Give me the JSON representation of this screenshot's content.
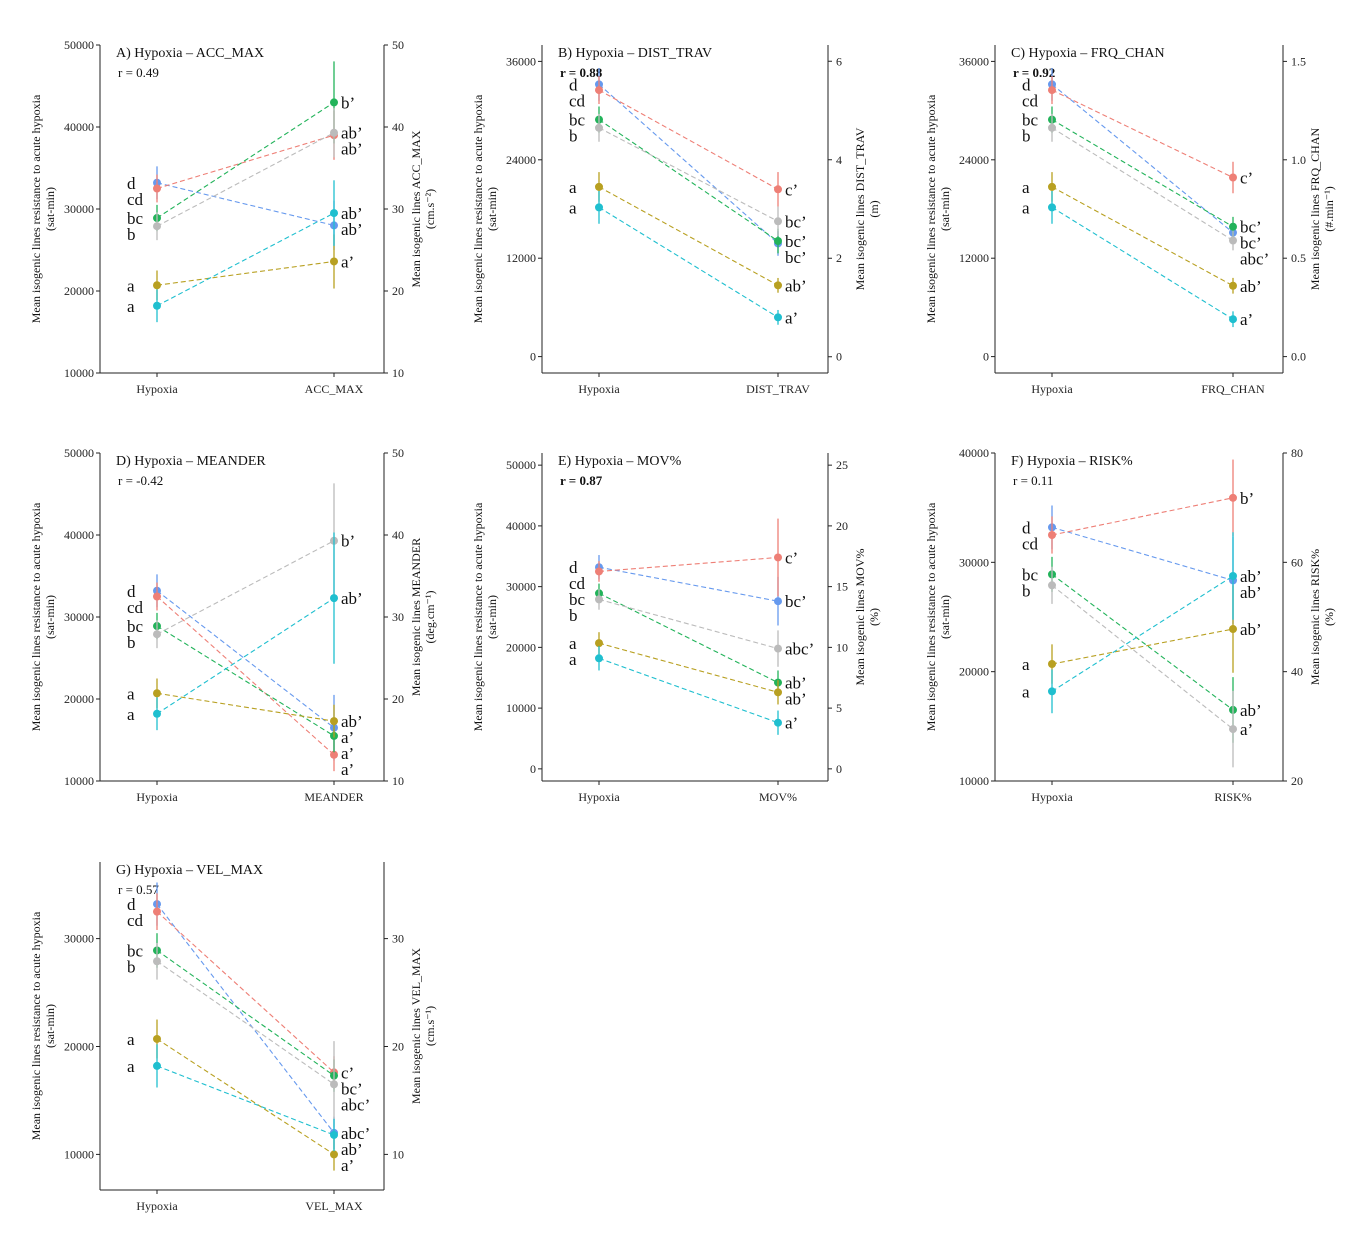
{
  "left_axis_title": [
    "Mean isogenic lines resistance to acute hypoxia",
    "(sat-min)"
  ],
  "category_left": "Hypoxia",
  "chart_data": [
    {
      "type": "line",
      "title": "A) Hypoxia – ACC_MAX",
      "r_text": "r = 0.49",
      "r_bold": false,
      "categories": [
        "Hypoxia",
        "ACC_MAX"
      ],
      "left_ylim": [
        10000,
        50000
      ],
      "left_ticks": [
        10000,
        20000,
        30000,
        40000,
        50000
      ],
      "right_ylim": [
        10,
        50
      ],
      "right_ticks": [
        10,
        20,
        30,
        40,
        50
      ],
      "right_axis_title": [
        "Mean isogenic lines ACC_MAX",
        "(cm.s⁻²)"
      ],
      "left_letters": [
        "d",
        "cd",
        "bc",
        "b",
        "a",
        "a"
      ],
      "right_letters": [
        "b’",
        "ab’",
        "ab’",
        "ab’",
        "ab’",
        "a’"
      ],
      "series": [
        {
          "color": "#6699ee",
          "left": 33200,
          "right": 28,
          "left_err": 2000,
          "right_err": 3
        },
        {
          "color": "#ee7f76",
          "left": 32500,
          "right": 39,
          "left_err": 1700,
          "right_err": 3
        },
        {
          "color": "#22b35a",
          "left": 28900,
          "right": 43,
          "left_err": 1600,
          "right_err": 5
        },
        {
          "color": "#bbbbbb",
          "left": 27900,
          "right": 39.3,
          "left_err": 1700,
          "right_err": 3
        },
        {
          "color": "#b8a021",
          "left": 20700,
          "right": 23.6,
          "left_err": 1800,
          "right_err": 3.3
        },
        {
          "color": "#1fbfcf",
          "left": 18200,
          "right": 29.5,
          "left_err": 2000,
          "right_err": 4
        }
      ]
    },
    {
      "type": "line",
      "title": "B) Hypoxia – DIST_TRAV",
      "r_text": "r = 0.88",
      "r_bold": true,
      "categories": [
        "Hypoxia",
        "DIST_TRAV"
      ],
      "left_ylim": [
        -2000,
        38000
      ],
      "left_ticks": [
        0,
        12000,
        24000,
        36000
      ],
      "right_ylim": [
        -0.33,
        6.33
      ],
      "right_ticks": [
        0,
        2,
        4,
        6
      ],
      "right_axis_title": [
        "Mean isogenic lines DIST_TRAV",
        "(m)"
      ],
      "left_letters": [
        "d",
        "cd",
        "bc",
        "b",
        "a",
        "a"
      ],
      "right_letters": [
        "c’",
        "bc’",
        "bc’",
        "bc’",
        "ab’",
        "a’"
      ],
      "series": [
        {
          "color": "#6699ee",
          "left": 33200,
          "right": 2.3,
          "left_err": 2000,
          "right_err": 0.25
        },
        {
          "color": "#ee7f76",
          "left": 32500,
          "right": 3.4,
          "left_err": 1700,
          "right_err": 0.35
        },
        {
          "color": "#22b35a",
          "left": 28900,
          "right": 2.35,
          "left_err": 1600,
          "right_err": 0.25
        },
        {
          "color": "#bbbbbb",
          "left": 27900,
          "right": 2.75,
          "left_err": 1700,
          "right_err": 0.3
        },
        {
          "color": "#b8a021",
          "left": 20700,
          "right": 1.45,
          "left_err": 1800,
          "right_err": 0.15
        },
        {
          "color": "#1fbfcf",
          "left": 18200,
          "right": 0.8,
          "left_err": 2000,
          "right_err": 0.15
        }
      ]
    },
    {
      "type": "line",
      "title": "C) Hypoxia – FRQ_CHAN",
      "r_text": "r = 0.92",
      "r_bold": true,
      "categories": [
        "Hypoxia",
        "FRQ_CHAN"
      ],
      "left_ylim": [
        -2000,
        38000
      ],
      "left_ticks": [
        0,
        12000,
        24000,
        36000
      ],
      "right_ylim": [
        -0.0833,
        1.5833
      ],
      "right_ticks": [
        0.0,
        0.5,
        1.0,
        1.5
      ],
      "right_axis_title": [
        "Mean isogenic lines FRQ_CHAN",
        "(#.min⁻¹)"
      ],
      "left_letters": [
        "d",
        "cd",
        "bc",
        "b",
        "a",
        "a"
      ],
      "right_letters": [
        "c’",
        "bc’",
        "bc’",
        "abc’",
        "ab’",
        "a’"
      ],
      "series": [
        {
          "color": "#6699ee",
          "left": 33200,
          "right": 0.63,
          "left_err": 2000,
          "right_err": 0.05
        },
        {
          "color": "#ee7f76",
          "left": 32500,
          "right": 0.91,
          "left_err": 1700,
          "right_err": 0.08
        },
        {
          "color": "#22b35a",
          "left": 28900,
          "right": 0.66,
          "left_err": 1600,
          "right_err": 0.05
        },
        {
          "color": "#bbbbbb",
          "left": 27900,
          "right": 0.59,
          "left_err": 1700,
          "right_err": 0.05
        },
        {
          "color": "#b8a021",
          "left": 20700,
          "right": 0.36,
          "left_err": 1800,
          "right_err": 0.04
        },
        {
          "color": "#1fbfcf",
          "left": 18200,
          "right": 0.19,
          "left_err": 2000,
          "right_err": 0.04
        }
      ]
    },
    {
      "type": "line",
      "title": "D) Hypoxia – MEANDER",
      "r_text": "r = -0.42",
      "r_bold": false,
      "categories": [
        "Hypoxia",
        "MEANDER"
      ],
      "left_ylim": [
        10000,
        50000
      ],
      "left_ticks": [
        10000,
        20000,
        30000,
        40000,
        50000
      ],
      "right_ylim": [
        10,
        50
      ],
      "right_ticks": [
        10,
        20,
        30,
        40,
        50
      ],
      "right_axis_title": [
        "Mean isogenic lines MEANDER",
        "(deg.cm⁻¹)"
      ],
      "left_letters": [
        "d",
        "cd",
        "bc",
        "b",
        "a",
        "a"
      ],
      "right_letters": [
        "b’",
        "ab’",
        "ab’",
        "a’",
        "a’",
        "a’"
      ],
      "series": [
        {
          "color": "#6699ee",
          "left": 33200,
          "right": 16.5,
          "left_err": 2000,
          "right_err": 4
        },
        {
          "color": "#ee7f76",
          "left": 32500,
          "right": 13.2,
          "left_err": 1700,
          "right_err": 2
        },
        {
          "color": "#22b35a",
          "left": 28900,
          "right": 15.5,
          "left_err": 1600,
          "right_err": 2
        },
        {
          "color": "#bbbbbb",
          "left": 27900,
          "right": 39.3,
          "left_err": 1700,
          "right_err": 7
        },
        {
          "color": "#b8a021",
          "left": 20700,
          "right": 17.3,
          "left_err": 1800,
          "right_err": 2
        },
        {
          "color": "#1fbfcf",
          "left": 18200,
          "right": 32.3,
          "left_err": 2000,
          "right_err": 8
        }
      ]
    },
    {
      "type": "line",
      "title": "E) Hypoxia – MOV%",
      "r_text": "r = 0.87",
      "r_bold": true,
      "categories": [
        "Hypoxia",
        "MOV%"
      ],
      "left_ylim": [
        -2000,
        52000
      ],
      "left_ticks": [
        0,
        10000,
        20000,
        30000,
        40000,
        50000
      ],
      "right_ylim": [
        -1,
        26
      ],
      "right_ticks": [
        0,
        5,
        10,
        15,
        20,
        25
      ],
      "right_axis_title": [
        "Mean isogenic lines MOV%",
        "(%)"
      ],
      "left_letters": [
        "d",
        "cd",
        "bc",
        "b",
        "a",
        "a"
      ],
      "right_letters": [
        "c’",
        "bc’",
        "abc’",
        "ab’",
        "ab’",
        "a’"
      ],
      "series": [
        {
          "color": "#6699ee",
          "left": 33200,
          "right": 13.8,
          "left_err": 2000,
          "right_err": 2
        },
        {
          "color": "#ee7f76",
          "left": 32500,
          "right": 17.4,
          "left_err": 1700,
          "right_err": 3.2
        },
        {
          "color": "#22b35a",
          "left": 28900,
          "right": 7.1,
          "left_err": 1600,
          "right_err": 1
        },
        {
          "color": "#bbbbbb",
          "left": 27900,
          "right": 9.9,
          "left_err": 1700,
          "right_err": 1.5
        },
        {
          "color": "#b8a021",
          "left": 20700,
          "right": 6.3,
          "left_err": 1800,
          "right_err": 1
        },
        {
          "color": "#1fbfcf",
          "left": 18200,
          "right": 3.8,
          "left_err": 2000,
          "right_err": 1
        }
      ]
    },
    {
      "type": "line",
      "title": "F) Hypoxia – RISK%",
      "r_text": "r = 0.11",
      "r_bold": false,
      "categories": [
        "Hypoxia",
        "RISK%"
      ],
      "left_ylim": [
        10000,
        40000
      ],
      "left_ticks": [
        10000,
        20000,
        30000,
        40000
      ],
      "right_ylim": [
        20,
        80
      ],
      "right_ticks": [
        20,
        40,
        60,
        80
      ],
      "right_axis_title": [
        "Mean isogenic lines RISK%",
        "(%)"
      ],
      "left_letters": [
        "d",
        "cd",
        "bc",
        "b",
        "a",
        "a"
      ],
      "right_letters": [
        "b’",
        "ab’",
        "ab’",
        "ab’",
        "ab’",
        "a’"
      ],
      "series": [
        {
          "color": "#6699ee",
          "left": 33200,
          "right": 56.7,
          "left_err": 2000,
          "right_err": 8
        },
        {
          "color": "#ee7f76",
          "left": 32500,
          "right": 71.8,
          "left_err": 1700,
          "right_err": 7
        },
        {
          "color": "#22b35a",
          "left": 28900,
          "right": 33,
          "left_err": 1600,
          "right_err": 6
        },
        {
          "color": "#bbbbbb",
          "left": 27900,
          "right": 29.5,
          "left_err": 1700,
          "right_err": 7
        },
        {
          "color": "#b8a021",
          "left": 20700,
          "right": 47.8,
          "left_err": 1800,
          "right_err": 8
        },
        {
          "color": "#1fbfcf",
          "left": 18200,
          "right": 57.5,
          "left_err": 2000,
          "right_err": 8
        }
      ]
    },
    {
      "type": "line",
      "title": "G) Hypoxia – VEL_MAX",
      "r_text": "r = 0.57",
      "r_bold": false,
      "categories": [
        "Hypoxia",
        "VEL_MAX"
      ],
      "left_ylim": [
        6700,
        37100
      ],
      "left_ticks": [
        10000,
        20000,
        30000
      ],
      "right_ylim": [
        6.7,
        37.1
      ],
      "right_ticks": [
        10,
        20,
        30
      ],
      "right_axis_title": [
        "Mean isogenic lines VEL_MAX",
        "(cm.s⁻¹)"
      ],
      "left_letters": [
        "d",
        "cd",
        "bc",
        "b",
        "a",
        "a"
      ],
      "right_letters": [
        "c’",
        "bc’",
        "abc’",
        "abc’",
        "ab’",
        "a’"
      ],
      "series": [
        {
          "color": "#6699ee",
          "left": 33200,
          "right": 12,
          "left_err": 2000,
          "right_err": 1.5
        },
        {
          "color": "#ee7f76",
          "left": 32500,
          "right": 17.6,
          "left_err": 1700,
          "right_err": 1.5
        },
        {
          "color": "#22b35a",
          "left": 28900,
          "right": 17.3,
          "left_err": 1600,
          "right_err": 1.5
        },
        {
          "color": "#bbbbbb",
          "left": 27900,
          "right": 16.5,
          "left_err": 1700,
          "right_err": 4
        },
        {
          "color": "#b8a021",
          "left": 20700,
          "right": 10,
          "left_err": 1800,
          "right_err": 1.5
        },
        {
          "color": "#1fbfcf",
          "left": 18200,
          "right": 11.8,
          "left_err": 2000,
          "right_err": 1.5
        }
      ]
    }
  ]
}
